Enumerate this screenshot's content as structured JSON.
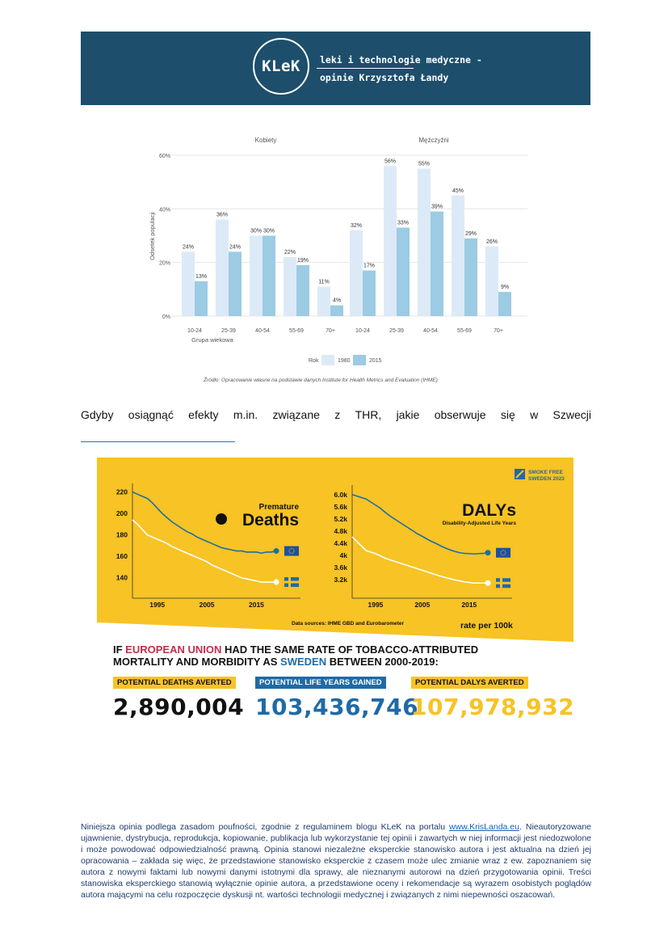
{
  "header": {
    "logo_text": "KLeK",
    "tagline_line1": "leki i technologie medyczne -",
    "tagline_line2": "opinie Krzysztofa Łandy",
    "bg_color": "#1d4e6b"
  },
  "chart_data": [
    {
      "type": "bar",
      "panels": [
        {
          "title": "Kobiety",
          "categories": [
            "10-24",
            "25-39",
            "40-54",
            "55-69",
            "70+"
          ],
          "series": [
            {
              "name": "1980",
              "values": [
                24,
                36,
                30,
                22,
                11
              ],
              "labels": [
                "24%",
                "36%",
                "30%",
                "22%",
                "11%"
              ]
            },
            {
              "name": "2015",
              "values": [
                13,
                24,
                30,
                19,
                4
              ],
              "labels": [
                "13%",
                "24%",
                "30%",
                "19%",
                "4%"
              ]
            }
          ]
        },
        {
          "title": "Mężczyźni",
          "categories": [
            "10-24",
            "25-39",
            "40-54",
            "55-69",
            "70+"
          ],
          "series": [
            {
              "name": "1980",
              "values": [
                32,
                56,
                55,
                45,
                26
              ],
              "labels": [
                "32%",
                "56%",
                "55%",
                "45%",
                "26%"
              ]
            },
            {
              "name": "2015",
              "values": [
                17,
                33,
                39,
                29,
                9
              ],
              "labels": [
                "17%",
                "33%",
                "39%",
                "29%",
                "9%"
              ]
            }
          ]
        }
      ],
      "ylabel": "Odsetek populacji",
      "xlabel": "Grupa wiekowa",
      "yticks": [
        "60%",
        "40%",
        "20%",
        "0%"
      ],
      "ylim": [
        0,
        60
      ],
      "legend": {
        "title": "Rok",
        "items": [
          "1980",
          "2015"
        ],
        "colors": [
          "#dceaf7",
          "#9ccbe4"
        ],
        "placement": "bottom-center"
      },
      "source": "Źródło: Opracowanie własne na podstawie danych Institute for Health Metrics and Evaluation (IHME)"
    },
    {
      "type": "line",
      "title_line1": "Premature",
      "title_line2": "Deaths",
      "x": [
        1990,
        1991,
        1992,
        1993,
        1994,
        1995,
        1996,
        1997,
        1998,
        1999,
        2000,
        2001,
        2002,
        2003,
        2004,
        2005,
        2006,
        2007,
        2008,
        2009,
        2010,
        2011,
        2012,
        2013,
        2014,
        2015,
        2016,
        2017,
        2018,
        2019
      ],
      "xticks": [
        "1995",
        "2005",
        "2015"
      ],
      "yticks": [
        "220",
        "200",
        "180",
        "160",
        "140"
      ],
      "ylim": [
        130,
        222
      ],
      "series": [
        {
          "name": "EU",
          "color": "#1a6ea8",
          "values": [
            220,
            218,
            216,
            214,
            210,
            205,
            200,
            196,
            192,
            189,
            186,
            183,
            181,
            178,
            176,
            174,
            172,
            170,
            168,
            167,
            166,
            165,
            165,
            164,
            164,
            164,
            163,
            164,
            164,
            165
          ]
        },
        {
          "name": "Sweden",
          "color": "#ffffff",
          "values": [
            194,
            190,
            185,
            180,
            178,
            176,
            174,
            172,
            169,
            167,
            165,
            163,
            161,
            159,
            157,
            155,
            152,
            150,
            148,
            146,
            144,
            142,
            140,
            139,
            138,
            137,
            136,
            136,
            136,
            136
          ]
        }
      ]
    },
    {
      "type": "line",
      "title_line1": "DALYs",
      "title_line2": "Disability-Adjusted Life Years",
      "x": [
        1990,
        1991,
        1992,
        1993,
        1994,
        1995,
        1996,
        1997,
        1998,
        1999,
        2000,
        2001,
        2002,
        2003,
        2004,
        2005,
        2006,
        2007,
        2008,
        2009,
        2010,
        2011,
        2012,
        2013,
        2014,
        2015,
        2016,
        2017,
        2018,
        2019
      ],
      "xticks": [
        "1995",
        "2005",
        "2015"
      ],
      "yticks": [
        "6.0k",
        "5.6k",
        "5.2k",
        "4.8k",
        "4.4k",
        "4k",
        "3.6k",
        "3.2k"
      ],
      "ylim": [
        2900,
        6100
      ],
      "series": [
        {
          "name": "EU",
          "color": "#1a6ea8",
          "values": [
            6000,
            5950,
            5900,
            5850,
            5750,
            5650,
            5550,
            5420,
            5300,
            5200,
            5100,
            5000,
            4900,
            4800,
            4700,
            4620,
            4530,
            4450,
            4380,
            4300,
            4230,
            4170,
            4120,
            4080,
            4060,
            4050,
            4040,
            4050,
            4060,
            4080
          ]
        },
        {
          "name": "Sweden",
          "color": "#ffffff",
          "values": [
            4600,
            4450,
            4300,
            4150,
            4100,
            4050,
            3980,
            3900,
            3850,
            3800,
            3750,
            3700,
            3650,
            3600,
            3550,
            3500,
            3450,
            3400,
            3350,
            3300,
            3260,
            3220,
            3180,
            3150,
            3120,
            3100,
            3080,
            3080,
            3080,
            3080
          ]
        }
      ]
    }
  ],
  "paragraph": {
    "words": [
      "Gdyby",
      "osiągnąć",
      "efekty",
      "m.in.",
      "związane",
      "z",
      "THR,",
      "jakie",
      "obserwuje",
      "się",
      "w",
      "Szwecji"
    ]
  },
  "infographic": {
    "badge_line1": "SMOKE FREE",
    "badge_line2": "SWEDEN 2023",
    "data_sources": "Data sources: IHME GBD and Eurobarometer",
    "rate_label": "rate per 100k",
    "headline_part1": "IF ",
    "headline_eu": "EUROPEAN UNION",
    "headline_part2": " HAD THE SAME RATE OF TOBACCO-ATTRIBUTED",
    "headline_part3": "MORTALITY AND MORBIDITY AS ",
    "headline_se": "SWEDEN",
    "headline_part4": " BETWEEN 2000-2019:",
    "stats": [
      {
        "label": "POTENTIAL DEATHS AVERTED",
        "value": "2,890,004",
        "label_bg": "#f7c325",
        "label_color": "#111111",
        "value_color": "#111111"
      },
      {
        "label": "POTENTIAL LIFE YEARS GAINED",
        "value": "103,436,746",
        "label_bg": "#1f6aa6",
        "label_color": "#ffffff",
        "value_color": "#1f6aa6"
      },
      {
        "label": "POTENTIAL DALYS AVERTED",
        "value": "107,978,932",
        "label_bg": "#f7c325",
        "label_color": "#111111",
        "value_color": "#f7c325"
      }
    ],
    "accent_yellow": "#f7c325"
  },
  "footer": {
    "text_before_link": "Niniejsza opinia podlega zasadom poufności, zgodnie z regulaminem blogu KLeK na portalu ",
    "link_text": "www.KrisLanda.eu",
    "text_after_link": ". Nieautoryzowane ujawnienie, dystrybucja, reprodukcja, kopiowanie, publikacja lub wykorzystanie tej opinii i zawartych w niej informacji jest niedozwolone i może powodować odpowiedzialność prawną. Opinia stanowi niezależne eksperckie stanowisko autora i jest aktualna na dzień jej opracowania – zakłada się więc, że przedstawione stanowisko eksperckie z czasem może ulec zmianie wraz z ew. zapoznaniem się autora z nowymi faktami lub nowymi danymi istotnymi dla sprawy, ale nieznanymi autorowi na dzień przygotowania opinii. Treści stanowiska eksperckiego stanowią wyłącznie opinie autora, a przedstawione oceny i rekomendacje są wyrazem osobistych poglądów autora mającymi na celu rozpoczęcie dyskusji nt. wartości technologii medycznej i związanych z nimi niepewności oszacowań."
  }
}
